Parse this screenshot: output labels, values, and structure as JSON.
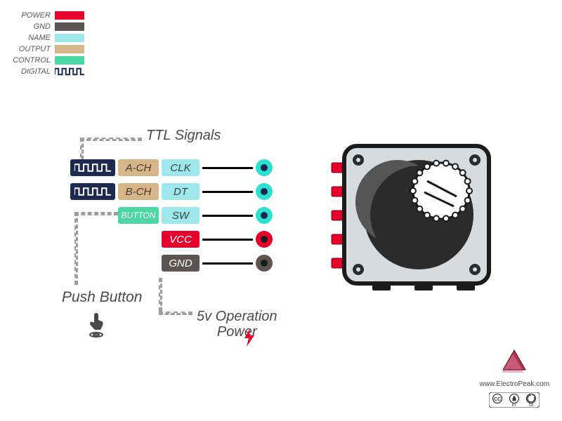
{
  "legend": {
    "items": [
      {
        "label": "POWER",
        "color": "#e4002b"
      },
      {
        "label": "GND",
        "color": "#5a5552"
      },
      {
        "label": "NAME",
        "color": "#9fe7ea"
      },
      {
        "label": "OUTPUT",
        "color": "#d7b58a"
      },
      {
        "label": "CONTROL",
        "color": "#4cd6a6"
      },
      {
        "label": "DIGITAL",
        "color": "#1b2a4e",
        "wave": true
      }
    ]
  },
  "callouts": {
    "ttl": "TTL Signals",
    "push": "Push Button",
    "power1": "5v Operation",
    "power2": "Power"
  },
  "pins": [
    {
      "digital": true,
      "func": {
        "text": "A-CH",
        "bg": "#d7b58a",
        "fg": "#4a3a22"
      },
      "name": {
        "text": "CLK",
        "bg": "#9fe7ea",
        "fg": "#2a4a4a"
      },
      "dot": {
        "outer": "#2de0d0",
        "inner": "#1b2a4e"
      }
    },
    {
      "digital": true,
      "func": {
        "text": "B-CH",
        "bg": "#d7b58a",
        "fg": "#4a3a22"
      },
      "name": {
        "text": "DT",
        "bg": "#9fe7ea",
        "fg": "#2a4a4a"
      },
      "dot": {
        "outer": "#2de0d0",
        "inner": "#1b2a4e"
      }
    },
    {
      "digital": false,
      "func": {
        "text": "BUTTON",
        "bg": "#4cd6a6",
        "fg": "#ffffff",
        "small": true
      },
      "name": {
        "text": "SW",
        "bg": "#9fe7ea",
        "fg": "#2a4a4a"
      },
      "dot": {
        "outer": "#2de0d0",
        "inner": "#1b2a4e"
      }
    },
    {
      "digital": false,
      "func": null,
      "name": {
        "text": "VCC",
        "bg": "#e4002b",
        "fg": "#ffffff"
      },
      "dot": {
        "outer": "#e4002b",
        "inner": "#1b1b1b"
      }
    },
    {
      "digital": false,
      "func": null,
      "name": {
        "text": "GND",
        "bg": "#5a5552",
        "fg": "#ffffff"
      },
      "dot": {
        "outer": "#5a5552",
        "inner": "#1b1b1b"
      }
    }
  ],
  "module": {
    "body_fill": "#d8dadc",
    "body_stroke": "#1b1b1b",
    "disc_color": "#2b2b2b",
    "knob_color": "#ffffff",
    "led_color": "#e4002b",
    "led_count": 5
  },
  "branding": {
    "site": "www.ElectroPeak.com",
    "cc": "CC BY SA"
  },
  "colors": {
    "wave_stroke": "#ffffff",
    "text": "#4a4a4a"
  }
}
